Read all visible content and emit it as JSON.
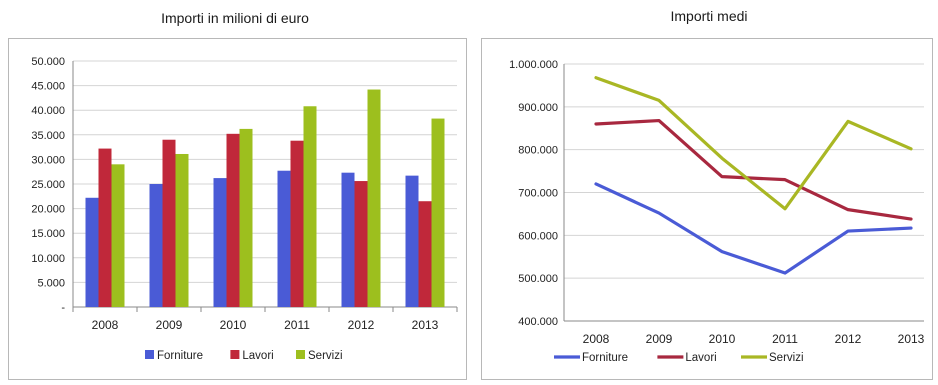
{
  "chart_data": [
    {
      "type": "bar",
      "title": "Importi in milioni di euro",
      "categories": [
        "2008",
        "2009",
        "2010",
        "2011",
        "2012",
        "2013"
      ],
      "series": [
        {
          "name": "Forniture",
          "color": "#4a5bd6",
          "values": [
            22200,
            25000,
            26200,
            27700,
            27300,
            26700
          ]
        },
        {
          "name": "Lavori",
          "color": "#c0283a",
          "values": [
            32200,
            34000,
            35200,
            33800,
            25600,
            21500
          ]
        },
        {
          "name": "Servizi",
          "color": "#9dbf1e",
          "values": [
            29000,
            31100,
            36200,
            40800,
            44200,
            38300
          ]
        }
      ],
      "ylim": [
        0,
        50000
      ],
      "yticks": [
        0,
        5000,
        10000,
        15000,
        20000,
        25000,
        30000,
        35000,
        40000,
        45000,
        50000
      ],
      "ytick_labels": [
        "-",
        "5.000",
        "10.000",
        "15.000",
        "20.000",
        "25.000",
        "30.000",
        "35.000",
        "40.000",
        "45.000",
        "50.000"
      ],
      "grid": true,
      "legend": "bottom"
    },
    {
      "type": "line",
      "title": "Importi medi",
      "categories": [
        "2008",
        "2009",
        "2010",
        "2011",
        "2012",
        "2013"
      ],
      "series": [
        {
          "name": "Forniture",
          "color": "#4a5bd6",
          "values": [
            720000,
            652000,
            562000,
            512000,
            610000,
            617000
          ]
        },
        {
          "name": "Lavori",
          "color": "#a8283f",
          "values": [
            860000,
            868000,
            737000,
            730000,
            660000,
            638000
          ]
        },
        {
          "name": "Servizi",
          "color": "#a9b724",
          "values": [
            968000,
            915000,
            780000,
            662000,
            866000,
            802000
          ]
        }
      ],
      "ylim": [
        400000,
        1000000
      ],
      "yticks": [
        400000,
        500000,
        600000,
        700000,
        800000,
        900000,
        1000000
      ],
      "ytick_labels": [
        "400.000",
        "500.000",
        "600.000",
        "700.000",
        "800.000",
        "900.000",
        "1.000.000"
      ],
      "grid": true,
      "legend": "bottom"
    }
  ]
}
